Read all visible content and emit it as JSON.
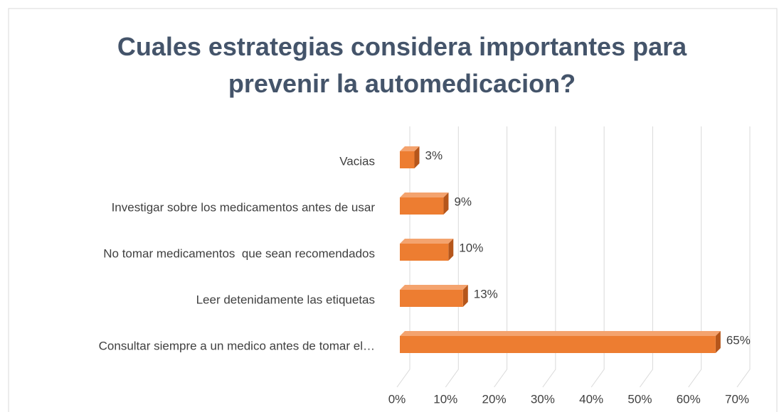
{
  "chart_data": {
    "type": "bar3d_horizontal",
    "title": "Cuales estrategias considera importantes para prevenir la automedicacion?",
    "categories": [
      "Vacias",
      "Investigar sobre los medicamentos antes de usar",
      "No tomar medicamentos  que sean recomendados",
      "Leer detenidamente las etiquetas",
      "Consultar siempre a un medico antes de tomar el…"
    ],
    "values": [
      3,
      9,
      10,
      13,
      65
    ],
    "value_labels": [
      "3%",
      "9%",
      "10%",
      "13%",
      "65%"
    ],
    "color": "#ed7d31",
    "xlim": [
      0,
      70
    ],
    "xticks": [
      {
        "value": 0,
        "label": "0%"
      },
      {
        "value": 10,
        "label": "10%"
      },
      {
        "value": 20,
        "label": "20%"
      },
      {
        "value": 30,
        "label": "30%"
      },
      {
        "value": 40,
        "label": "40%"
      },
      {
        "value": 50,
        "label": "50%"
      },
      {
        "value": 60,
        "label": "60%"
      },
      {
        "value": 70,
        "label": "70%"
      }
    ],
    "grid": true
  }
}
